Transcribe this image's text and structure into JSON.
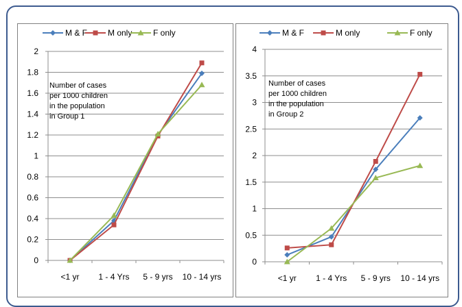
{
  "chart_data": [
    {
      "type": "line",
      "categories": [
        "<1 yr",
        "1 - 4 Yrs",
        "5 - 9 yrs",
        "10 - 14 yrs"
      ],
      "series": [
        {
          "name": "M & F",
          "values": [
            0,
            0.38,
            1.2,
            1.79
          ],
          "color": "#4a7ebb",
          "marker": "diamond"
        },
        {
          "name": "M only",
          "values": [
            0,
            0.34,
            1.19,
            1.89
          ],
          "color": "#be4b48",
          "marker": "square"
        },
        {
          "name": "F only",
          "values": [
            0,
            0.43,
            1.21,
            1.68
          ],
          "color": "#98b954",
          "marker": "triangle"
        }
      ],
      "ylim": [
        0,
        2
      ],
      "yticks": [
        0,
        0.2,
        0.4,
        0.6,
        0.8,
        1,
        1.2,
        1.4,
        1.6,
        1.8,
        2
      ],
      "ytick_labels": [
        "0",
        "0.2",
        "0.4",
        "0.6",
        "0.8",
        "1",
        "1.2",
        "1.4",
        "1.6",
        "1.8",
        "2"
      ],
      "grid": true,
      "legend": "top",
      "annotation": [
        "Number of cases",
        "per 1000 children",
        "in the population",
        "in Group 1"
      ]
    },
    {
      "type": "line",
      "categories": [
        "<1 yr",
        "1 - 4 Yrs",
        "5 - 9 yrs",
        "10 - 14 yrs"
      ],
      "series": [
        {
          "name": "M & F",
          "values": [
            0.13,
            0.47,
            1.74,
            2.71
          ],
          "color": "#4a7ebb",
          "marker": "diamond"
        },
        {
          "name": "M only",
          "values": [
            0.26,
            0.32,
            1.89,
            3.53
          ],
          "color": "#be4b48",
          "marker": "square"
        },
        {
          "name": "F only",
          "values": [
            0,
            0.63,
            1.58,
            1.81
          ],
          "color": "#98b954",
          "marker": "triangle"
        }
      ],
      "ylim": [
        0,
        4
      ],
      "yticks": [
        0,
        0.5,
        1,
        1.5,
        2,
        2.5,
        3,
        3.5,
        4
      ],
      "ytick_labels": [
        "0",
        "0.5",
        "1",
        "1.5",
        "2",
        "2.5",
        "3",
        "3.5",
        "4"
      ],
      "grid": true,
      "legend": "top",
      "annotation": [
        "Number of cases",
        "per 1000 children",
        "in the population",
        "in Group 2"
      ]
    }
  ]
}
